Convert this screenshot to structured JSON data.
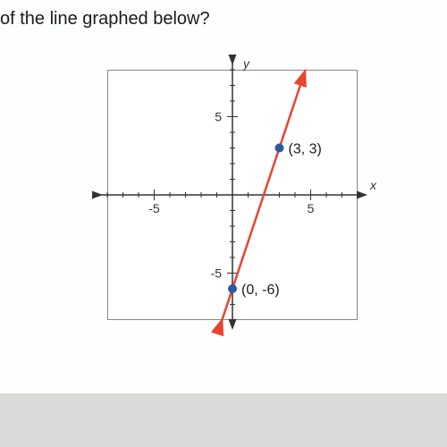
{
  "question_fragment": "of the line graphed below?",
  "graph": {
    "type": "line",
    "background_color": "#ffffff",
    "border_color": "#888888",
    "axis_color": "#333333",
    "tick_color": "#333333",
    "line_color": "#e8452f",
    "point_color": "#2b5aa0",
    "xlim": [
      -8,
      8
    ],
    "ylim": [
      -8,
      8
    ],
    "x_tick_labels": [
      -5,
      5
    ],
    "y_tick_labels": [
      -5,
      5
    ],
    "x_axis_label": "x",
    "y_axis_label": "y",
    "minor_tick_step": 1,
    "line_points": [
      {
        "x": 0,
        "y": -6
      },
      {
        "x": 3,
        "y": 3
      }
    ],
    "line_extend": [
      {
        "x": -0.7,
        "y": -8.1
      },
      {
        "x": 4.6,
        "y": 7.8
      }
    ],
    "marked_points": [
      {
        "x": 3,
        "y": 3,
        "label": "(3, 3)"
      },
      {
        "x": 0,
        "y": -6,
        "label": "(0, -6)"
      }
    ],
    "label_fontsize": 16,
    "tick_fontsize": 14,
    "arrow_size": 8
  },
  "page_bg": "#d8dbd8",
  "paper_bg": "#fdfefe"
}
